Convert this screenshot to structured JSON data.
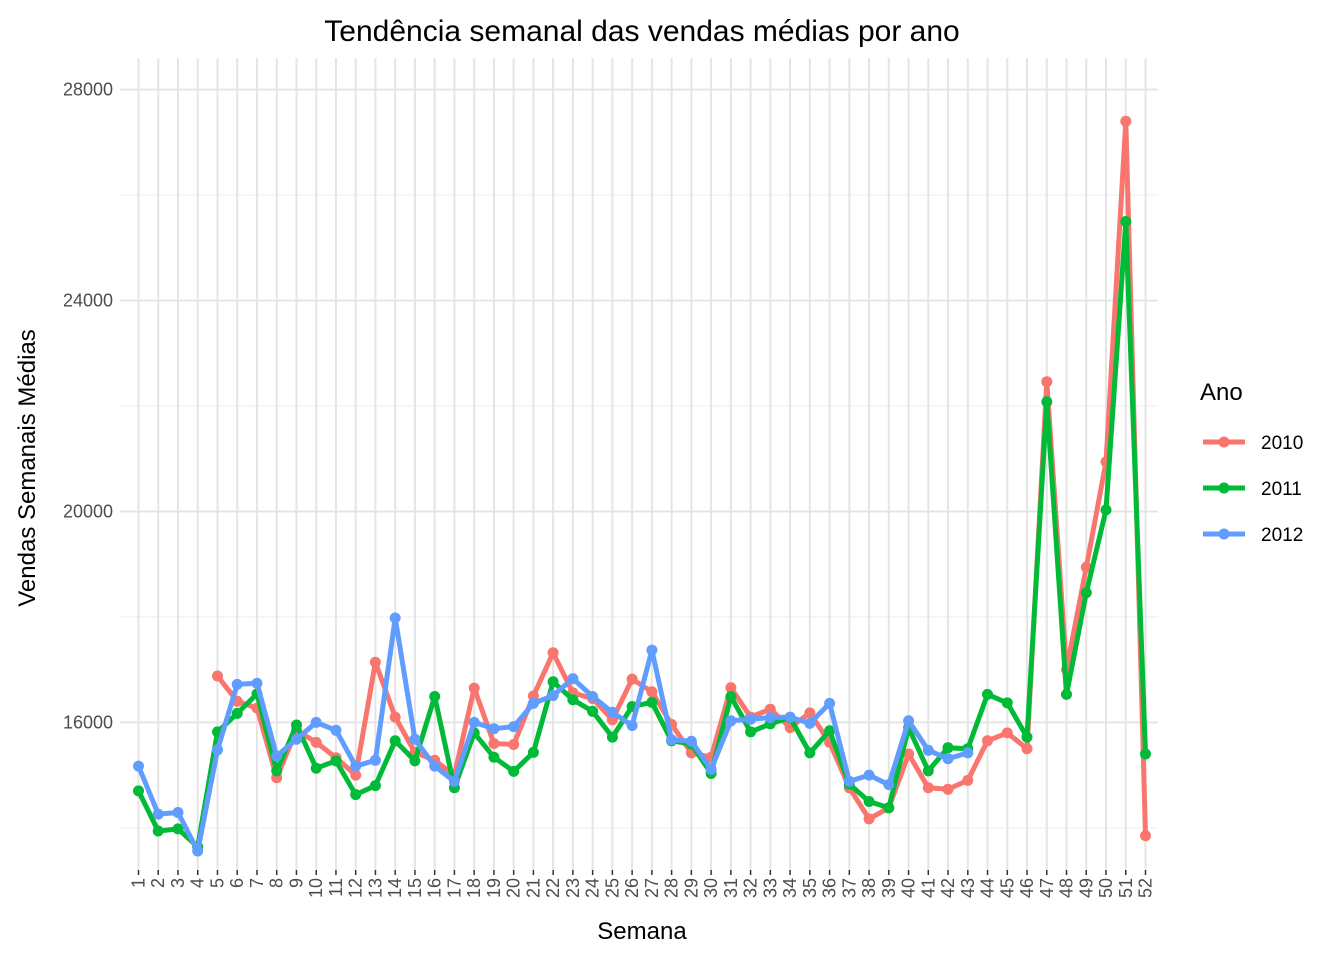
{
  "chart_data": {
    "type": "line",
    "title": "Tendência semanal das vendas médias por ano",
    "xlabel": "Semana",
    "ylabel": "Vendas Semanais Médias",
    "legend_title": "Ano",
    "legend_position": "right",
    "grid": true,
    "ylim": [
      13200,
      28600
    ],
    "yticks": [
      16000,
      20000,
      24000,
      28000
    ],
    "x": [
      1,
      2,
      3,
      4,
      5,
      6,
      7,
      8,
      9,
      10,
      11,
      12,
      13,
      14,
      15,
      16,
      17,
      18,
      19,
      20,
      21,
      22,
      23,
      24,
      25,
      26,
      27,
      28,
      29,
      30,
      31,
      32,
      33,
      34,
      35,
      36,
      37,
      38,
      39,
      40,
      41,
      42,
      43,
      44,
      45,
      46,
      47,
      48,
      49,
      50,
      51,
      52
    ],
    "series": [
      {
        "name": "2010",
        "color": "#F8766D",
        "values": [
          null,
          null,
          null,
          null,
          16880,
          16400,
          16270,
          14950,
          15850,
          15620,
          15330,
          15000,
          17140,
          16100,
          15430,
          15280,
          15000,
          16650,
          15600,
          15580,
          16500,
          17320,
          16560,
          16450,
          16050,
          16820,
          16580,
          15960,
          15420,
          15340,
          16660,
          16100,
          16250,
          15900,
          16180,
          15620,
          14760,
          14170,
          14380,
          15400,
          14760,
          14730,
          14900,
          15650,
          15800,
          15500,
          22460,
          17000,
          18940,
          20940,
          27400,
          13850
        ]
      },
      {
        "name": "2011",
        "color": "#00BA38",
        "values": [
          14700,
          13940,
          13980,
          13640,
          15820,
          16170,
          16540,
          15080,
          15950,
          15130,
          15270,
          14630,
          14800,
          15650,
          15270,
          16490,
          14760,
          15800,
          15340,
          15070,
          15430,
          16770,
          16430,
          16210,
          15720,
          16300,
          16380,
          15650,
          15590,
          15030,
          16490,
          15820,
          15970,
          16090,
          15420,
          15840,
          14830,
          14500,
          14380,
          15900,
          15080,
          15520,
          15500,
          16530,
          16370,
          15720,
          22080,
          16530,
          18460,
          20030,
          25500,
          15400
        ]
      },
      {
        "name": "2012",
        "color": "#619CFF",
        "values": [
          15170,
          14260,
          14290,
          13560,
          15480,
          16720,
          16740,
          15360,
          15680,
          16000,
          15850,
          15170,
          15280,
          17980,
          15680,
          15170,
          14880,
          16000,
          15880,
          15920,
          16360,
          16510,
          16830,
          16490,
          16190,
          15940,
          17370,
          15670,
          15640,
          15110,
          16030,
          16060,
          16090,
          16100,
          15980,
          16360,
          14880,
          15000,
          14820,
          16030,
          15470,
          15310,
          15420,
          null,
          null,
          null,
          null,
          null,
          null,
          null,
          null,
          null
        ]
      }
    ]
  }
}
